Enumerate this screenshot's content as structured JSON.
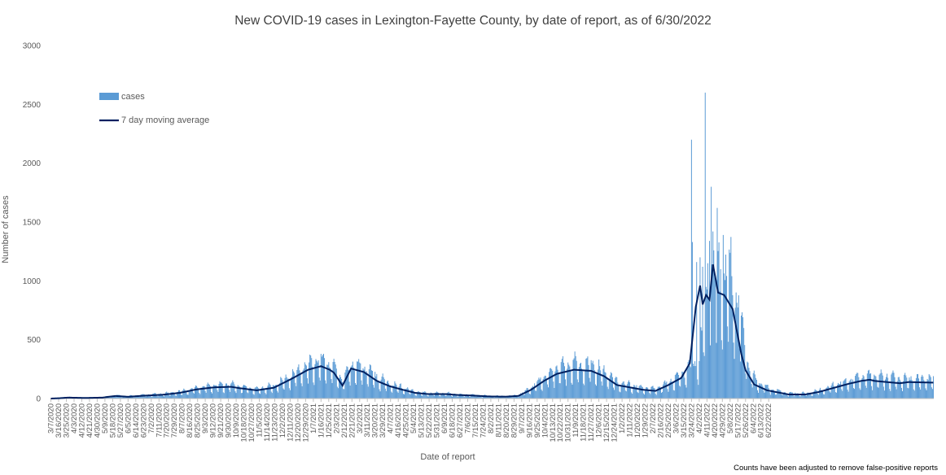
{
  "chart_data": {
    "type": "bar",
    "title": "New COVID-19 cases in Lexington-Fayette County, by date of report, as of 6/30/2022",
    "xlabel": "Date of report",
    "ylabel": "Number of cases",
    "footnote": "Counts have been adjusted to remove false-positive reports",
    "ylim": [
      0,
      3000
    ],
    "yticks": [
      0,
      500,
      1000,
      1500,
      2000,
      2500,
      3000
    ],
    "legend_position": "top-left",
    "grid": false,
    "x_start": "3/7/2020",
    "x_end": "6/30/2022",
    "xticks": [
      "3/7/2020",
      "3/16/2020",
      "3/25/2020",
      "4/3/2020",
      "4/12/2020",
      "4/21/2020",
      "4/30/2020",
      "5/9/2020",
      "5/18/2020",
      "5/27/2020",
      "6/5/2020",
      "6/14/2020",
      "6/23/2020",
      "7/2/2020",
      "7/11/2020",
      "7/20/2020",
      "7/29/2020",
      "8/7/2020",
      "8/16/2020",
      "8/25/2020",
      "9/3/2020",
      "9/12/2020",
      "9/21/2020",
      "9/30/2020",
      "10/9/2020",
      "10/18/2020",
      "10/27/2020",
      "11/5/2020",
      "11/14/2020",
      "11/23/2020",
      "12/2/2020",
      "12/11/2020",
      "12/20/2020",
      "12/29/2020",
      "1/7/2021",
      "1/16/2021",
      "1/25/2021",
      "2/3/2021",
      "2/12/2021",
      "2/21/2021",
      "3/2/2021",
      "3/11/2021",
      "3/20/2021",
      "3/29/2021",
      "4/7/2021",
      "4/16/2021",
      "4/25/2021",
      "5/4/2021",
      "5/13/2021",
      "5/22/2021",
      "5/31/2021",
      "6/9/2021",
      "6/18/2021",
      "6/27/2021",
      "7/6/2021",
      "7/15/2021",
      "7/24/2021",
      "8/2/2021",
      "8/11/2021",
      "8/20/2021",
      "8/29/2021",
      "9/7/2021",
      "9/16/2021",
      "9/25/2021",
      "10/4/2021",
      "10/13/2021",
      "10/22/2021",
      "10/31/2021",
      "11/9/2021",
      "11/18/2021",
      "11/27/2021",
      "12/6/2021",
      "12/15/2021",
      "12/24/2021",
      "1/2/2022",
      "1/11/2022",
      "1/20/2022",
      "1/29/2022",
      "2/7/2022",
      "2/16/2022",
      "2/25/2022",
      "3/6/2022",
      "3/15/2022",
      "3/24/2022",
      "4/2/2022",
      "4/11/2022",
      "4/20/2022",
      "4/29/2022",
      "5/8/2022",
      "5/17/2022",
      "5/26/2022",
      "6/4/2022",
      "6/13/2022",
      "6/22/2022"
    ],
    "series": [
      {
        "name": "cases",
        "kind": "bar",
        "color": "#5b9bd5",
        "anchors": [
          [
            0,
            0
          ],
          [
            10,
            5
          ],
          [
            20,
            12
          ],
          [
            40,
            6
          ],
          [
            60,
            10
          ],
          [
            75,
            25
          ],
          [
            90,
            18
          ],
          [
            110,
            28
          ],
          [
            130,
            35
          ],
          [
            150,
            50
          ],
          [
            170,
            80
          ],
          [
            190,
            100
          ],
          [
            210,
            105
          ],
          [
            220,
            90
          ],
          [
            240,
            70
          ],
          [
            260,
            95
          ],
          [
            280,
            170
          ],
          [
            300,
            250
          ],
          [
            315,
            280
          ],
          [
            325,
            250
          ],
          [
            330,
            230
          ],
          [
            340,
            130
          ],
          [
            350,
            250
          ],
          [
            365,
            230
          ],
          [
            380,
            160
          ],
          [
            395,
            110
          ],
          [
            410,
            80
          ],
          [
            425,
            50
          ],
          [
            440,
            40
          ],
          [
            460,
            40
          ],
          [
            475,
            30
          ],
          [
            490,
            28
          ],
          [
            510,
            20
          ],
          [
            530,
            18
          ],
          [
            545,
            25
          ],
          [
            560,
            80
          ],
          [
            575,
            160
          ],
          [
            590,
            220
          ],
          [
            610,
            260
          ],
          [
            630,
            250
          ],
          [
            645,
            200
          ],
          [
            660,
            120
          ],
          [
            675,
            100
          ],
          [
            690,
            80
          ],
          [
            705,
            70
          ],
          [
            720,
            120
          ],
          [
            735,
            180
          ],
          [
            748,
            230
          ],
          [
            755,
            280
          ],
          [
            760,
            500
          ],
          [
            765,
            800
          ],
          [
            770,
            950
          ],
          [
            780,
            900
          ],
          [
            790,
            950
          ],
          [
            800,
            750
          ],
          [
            810,
            380
          ],
          [
            815,
            200
          ],
          [
            825,
            120
          ],
          [
            840,
            70
          ],
          [
            860,
            40
          ],
          [
            880,
            40
          ],
          [
            895,
            60
          ],
          [
            910,
            90
          ],
          [
            930,
            130
          ],
          [
            945,
            160
          ],
          [
            960,
            170
          ],
          [
            975,
            160
          ],
          [
            990,
            150
          ],
          [
            1030,
            150
          ]
        ],
        "spikes": [
          [
            747,
            2200
          ],
          [
            748,
            1330
          ],
          [
            753,
            1160
          ],
          [
            757,
            1200
          ],
          [
            760,
            1120
          ],
          [
            763,
            2600
          ],
          [
            766,
            1150
          ],
          [
            768,
            1340
          ],
          [
            770,
            1800
          ],
          [
            772,
            1420
          ],
          [
            775,
            1040
          ],
          [
            777,
            1620
          ],
          [
            781,
            1100
          ],
          [
            784,
            1390
          ]
        ]
      },
      {
        "name": "7 day moving average",
        "kind": "line",
        "color": "#002060",
        "anchors": [
          [
            0,
            0
          ],
          [
            10,
            3
          ],
          [
            20,
            8
          ],
          [
            40,
            5
          ],
          [
            60,
            8
          ],
          [
            75,
            22
          ],
          [
            90,
            15
          ],
          [
            110,
            25
          ],
          [
            130,
            32
          ],
          [
            150,
            48
          ],
          [
            170,
            78
          ],
          [
            190,
            95
          ],
          [
            210,
            100
          ],
          [
            220,
            88
          ],
          [
            240,
            70
          ],
          [
            260,
            92
          ],
          [
            280,
            165
          ],
          [
            300,
            245
          ],
          [
            315,
            275
          ],
          [
            325,
            245
          ],
          [
            330,
            220
          ],
          [
            340,
            110
          ],
          [
            350,
            255
          ],
          [
            365,
            225
          ],
          [
            380,
            150
          ],
          [
            395,
            105
          ],
          [
            410,
            75
          ],
          [
            425,
            48
          ],
          [
            440,
            38
          ],
          [
            460,
            38
          ],
          [
            475,
            30
          ],
          [
            490,
            26
          ],
          [
            510,
            18
          ],
          [
            530,
            16
          ],
          [
            545,
            22
          ],
          [
            560,
            75
          ],
          [
            575,
            150
          ],
          [
            590,
            210
          ],
          [
            610,
            245
          ],
          [
            630,
            235
          ],
          [
            645,
            190
          ],
          [
            660,
            115
          ],
          [
            675,
            95
          ],
          [
            690,
            75
          ],
          [
            705,
            65
          ],
          [
            720,
            115
          ],
          [
            735,
            175
          ],
          [
            745,
            300
          ],
          [
            752,
            780
          ],
          [
            757,
            960
          ],
          [
            760,
            800
          ],
          [
            764,
            880
          ],
          [
            768,
            840
          ],
          [
            772,
            1140
          ],
          [
            778,
            900
          ],
          [
            785,
            880
          ],
          [
            795,
            760
          ],
          [
            805,
            380
          ],
          [
            810,
            240
          ],
          [
            820,
            120
          ],
          [
            835,
            70
          ],
          [
            860,
            35
          ],
          [
            880,
            35
          ],
          [
            895,
            55
          ],
          [
            910,
            85
          ],
          [
            930,
            125
          ],
          [
            945,
            150
          ],
          [
            955,
            160
          ],
          [
            960,
            150
          ],
          [
            975,
            140
          ],
          [
            990,
            130
          ],
          [
            1000,
            140
          ],
          [
            1030,
            135
          ]
        ]
      }
    ]
  }
}
